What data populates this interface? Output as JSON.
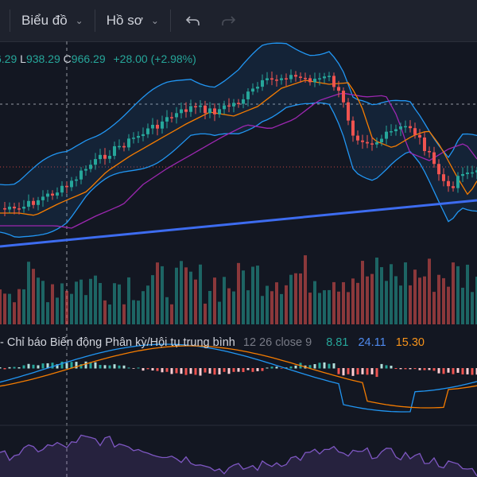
{
  "toolbar": {
    "chart_menu": "Biểu đồ",
    "profile_menu": "Hồ sơ",
    "undo_icon": "undo-icon",
    "redo_icon": "redo-icon"
  },
  "ohlc": {
    "open_partial": "6.29",
    "low_label": "L",
    "low": "938.29",
    "close_label": "C",
    "close": "966.29",
    "change": "+28.00 (+2.98%)"
  },
  "macd_legend": {
    "prefix": "-",
    "name": "Chỉ báo Biến động Phân kỳ/Hội tụ trung bình",
    "params": "12 26 close 9",
    "histogram": "8.81",
    "macd": "24.11",
    "signal": "15.30"
  },
  "colors": {
    "background": "#131722",
    "up": "#26a69a",
    "down": "#ef5350",
    "trendline": "#2962ff",
    "bollinger": "#2196f3",
    "ma_orange": "#f57c00",
    "ma_purple": "#9c27b0",
    "rsi": "#7e57c2"
  }
}
